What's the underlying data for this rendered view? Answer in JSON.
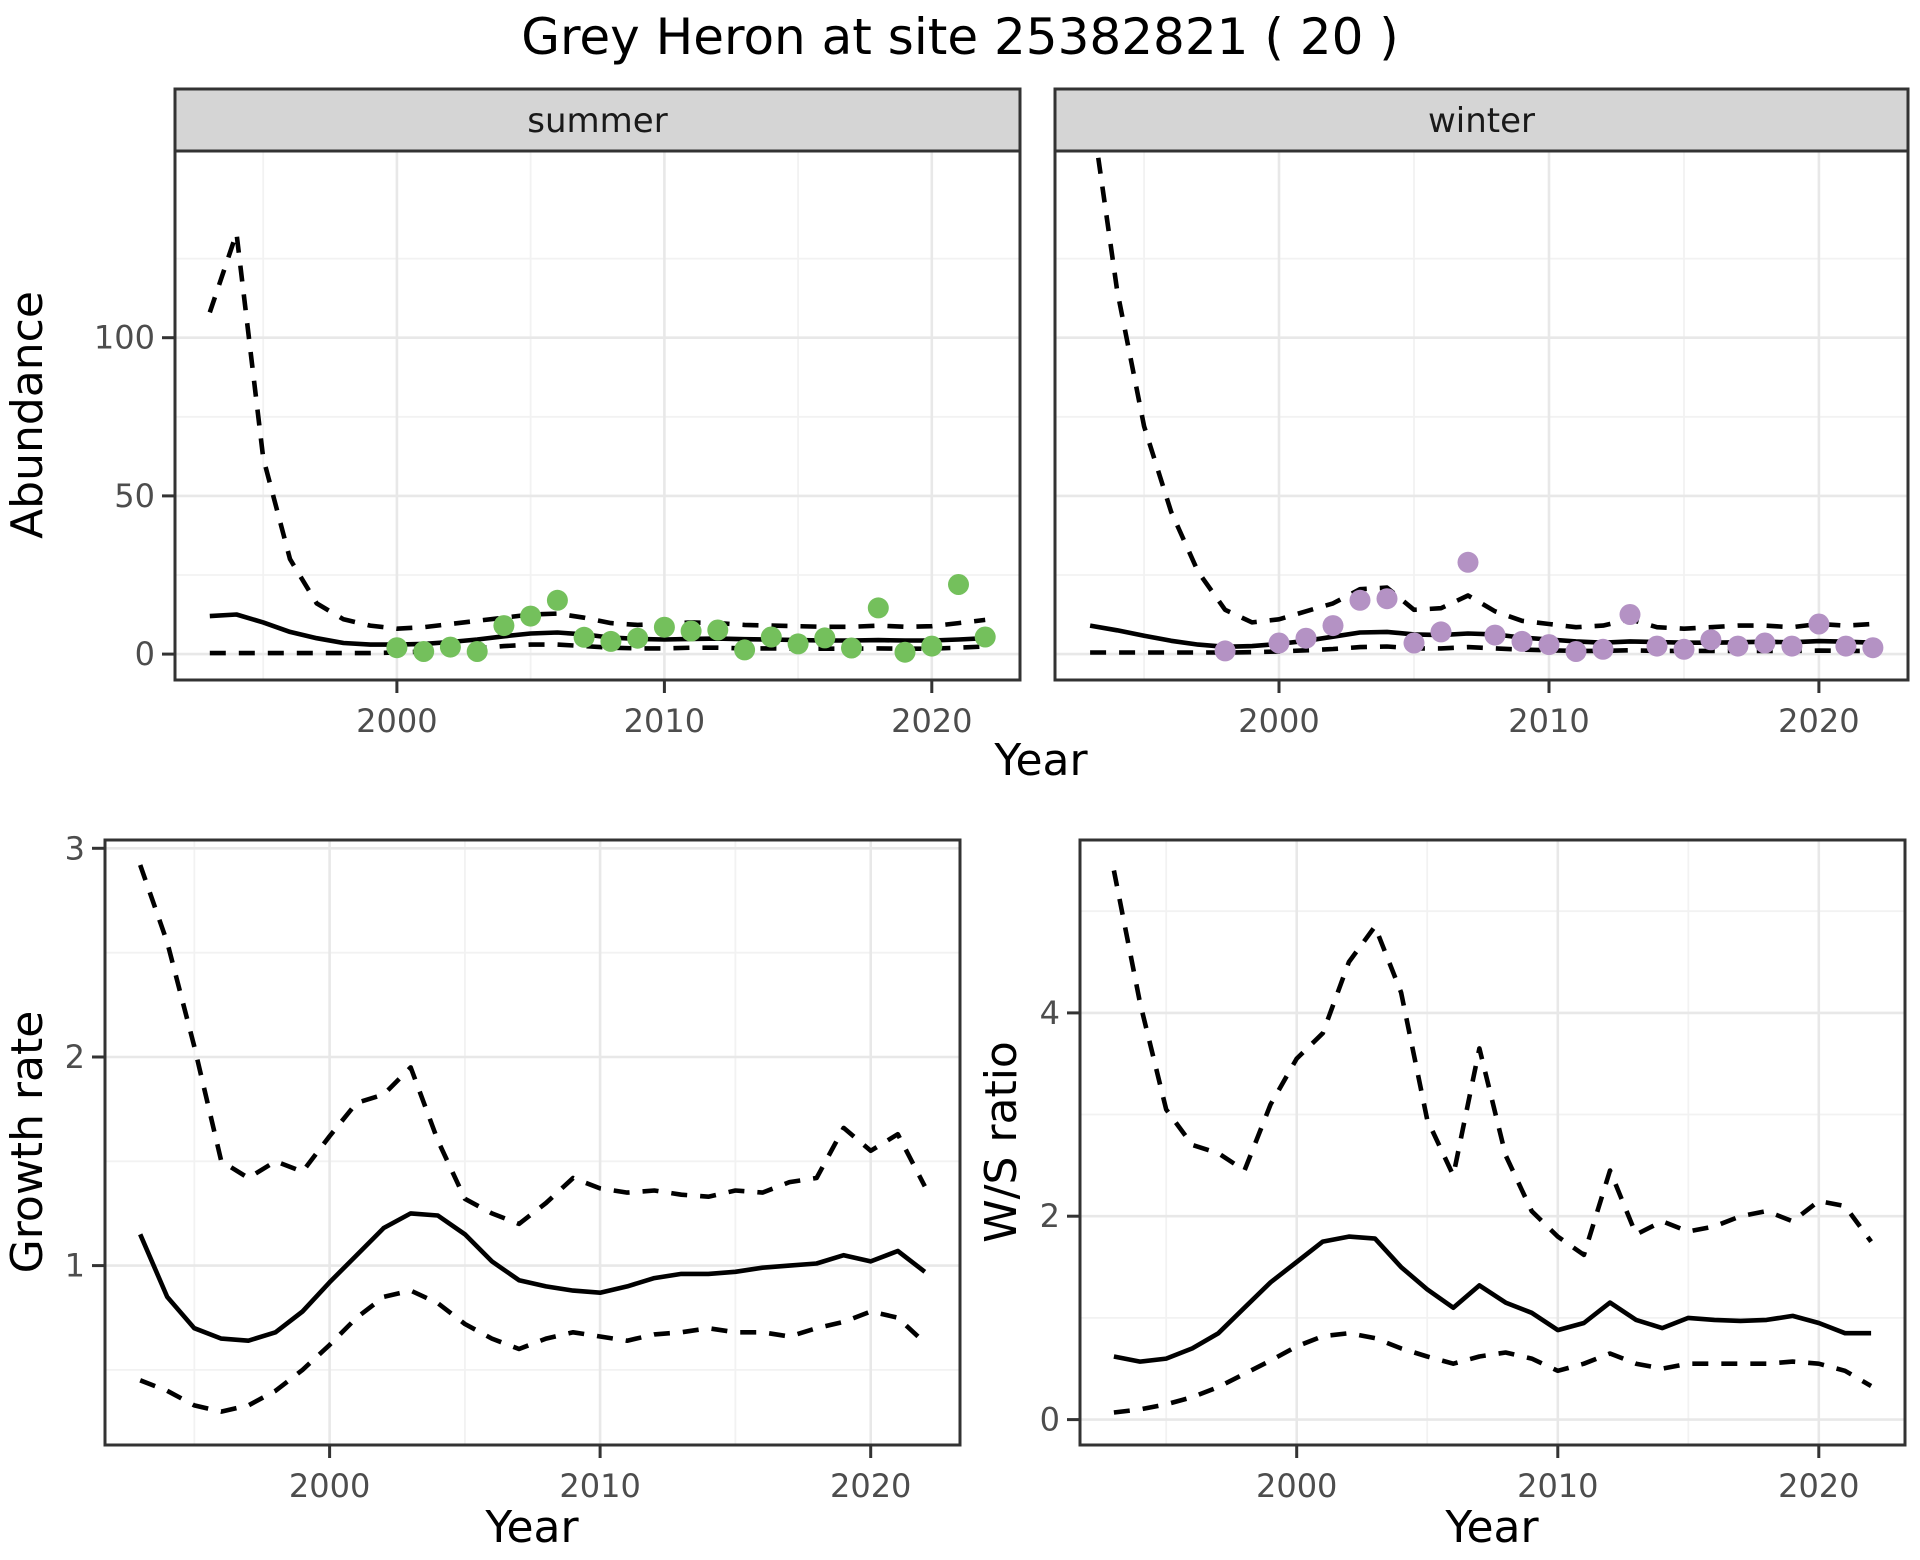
{
  "title": "Grey Heron at site 25382821 ( 20 )",
  "colors": {
    "background": "#FFFFFF",
    "panel_bg": "#FFFFFF",
    "strip_bg": "#D5D5D5",
    "strip_text": "#1A1A1A",
    "panel_border": "#333333",
    "grid_major": "#E8E8E8",
    "grid_minor": "#F2F2F2",
    "axis_text": "#4D4D4D",
    "tick_mark": "#333333",
    "line": "#000000",
    "summer_points": "#74C05C",
    "winter_points": "#B492C4"
  },
  "chart_data": [
    {
      "id": "abundance-summer",
      "type": "line",
      "facet_label": "summer",
      "ylabel": "Abundance",
      "xlabel": "Year",
      "xlim": [
        1991.7,
        2023.3
      ],
      "ylim": [
        -8.2,
        159
      ],
      "grid": true,
      "xticks": {
        "major": [
          2000,
          2010,
          2020
        ],
        "minor": [
          1995,
          2005,
          2015
        ],
        "labels": [
          "2000",
          "2010",
          "2020"
        ]
      },
      "yticks": {
        "major": [
          0,
          50,
          100
        ],
        "minor": [
          25,
          75,
          125
        ],
        "labels": [
          "0",
          "50",
          "100"
        ]
      },
      "x": [
        1993,
        1994,
        1995,
        1996,
        1997,
        1998,
        1999,
        2000,
        2001,
        2002,
        2003,
        2004,
        2005,
        2006,
        2007,
        2008,
        2009,
        2010,
        2011,
        2012,
        2013,
        2014,
        2015,
        2016,
        2017,
        2018,
        2019,
        2020,
        2021,
        2022
      ],
      "series": [
        {
          "name": "mean",
          "style": "solid",
          "values": [
            12,
            12.5,
            10,
            7,
            5,
            3.5,
            3,
            3,
            3.2,
            3.8,
            4.6,
            5.6,
            6.5,
            6.8,
            6.2,
            5.2,
            4.8,
            4.6,
            4.8,
            4.9,
            4.7,
            4.6,
            4.4,
            4.3,
            4.3,
            4.4,
            4.3,
            4.3,
            4.6,
            5
          ]
        },
        {
          "name": "upper_ci",
          "style": "dashed",
          "values": [
            108,
            133,
            62,
            30,
            16,
            11,
            9,
            8,
            8.5,
            9.5,
            10.5,
            11.5,
            12.5,
            12.8,
            11.5,
            9.8,
            9.2,
            9.5,
            10,
            9.8,
            9.2,
            9,
            8.8,
            8.6,
            8.6,
            9,
            8.6,
            8.8,
            9.8,
            10.8
          ]
        },
        {
          "name": "lower_ci",
          "style": "dashed",
          "values": [
            0.3,
            0.3,
            0.3,
            0.3,
            0.3,
            0.3,
            0.3,
            0.5,
            0.8,
            1.2,
            1.8,
            2.5,
            3,
            3,
            2.5,
            2,
            1.8,
            1.8,
            2,
            2,
            1.8,
            1.8,
            1.7,
            1.7,
            1.7,
            1.8,
            1.7,
            1.7,
            2,
            2.4
          ]
        }
      ],
      "points": {
        "color_key": "summer_points",
        "x": [
          2000,
          2001,
          2002,
          2003,
          2004,
          2005,
          2006,
          2007,
          2008,
          2009,
          2010,
          2011,
          2012,
          2013,
          2014,
          2015,
          2016,
          2017,
          2018,
          2019,
          2020,
          2021,
          2022
        ],
        "y": [
          2,
          0.8,
          2.2,
          0.8,
          9,
          12,
          17,
          5.3,
          4,
          5,
          8.5,
          7.3,
          7.6,
          1.3,
          5.4,
          3.2,
          5.1,
          1.9,
          14.6,
          0.6,
          2.5,
          22,
          5.4
        ]
      }
    },
    {
      "id": "abundance-winter",
      "type": "line",
      "facet_label": "winter",
      "ylabel": "Abundance",
      "xlabel": "Year",
      "xlim": [
        1991.7,
        2023.3
      ],
      "ylim": [
        -8.2,
        159
      ],
      "grid": true,
      "xticks": {
        "major": [
          2000,
          2010,
          2020
        ],
        "minor": [
          1995,
          2005,
          2015
        ],
        "labels": [
          "2000",
          "2010",
          "2020"
        ]
      },
      "yticks": {
        "major": [
          0,
          50,
          100
        ],
        "minor": [
          25,
          75,
          125
        ],
        "labels": [
          "0",
          "50",
          "100"
        ]
      },
      "x": [
        1993,
        1994,
        1995,
        1996,
        1997,
        1998,
        1999,
        2000,
        2001,
        2002,
        2003,
        2004,
        2005,
        2006,
        2007,
        2008,
        2009,
        2010,
        2011,
        2012,
        2013,
        2014,
        2015,
        2016,
        2017,
        2018,
        2019,
        2020,
        2021,
        2022
      ],
      "series": [
        {
          "name": "mean",
          "style": "solid",
          "values": [
            9,
            7.5,
            5.8,
            4.2,
            3,
            2.3,
            2.5,
            3.2,
            4.2,
            5.5,
            6.8,
            7,
            6.2,
            6,
            6.5,
            6.2,
            5.2,
            4.6,
            4,
            3.6,
            4,
            3.8,
            3.6,
            3.6,
            3.7,
            3.9,
            3.7,
            4.1,
            3.9,
            3.6
          ]
        },
        {
          "name": "upper_ci",
          "style": "dashed",
          "values": [
            175,
            115,
            72,
            45,
            26,
            14,
            10,
            11,
            13.5,
            16,
            20.5,
            21,
            14,
            14.5,
            18.5,
            13.5,
            10.5,
            9.5,
            8.5,
            9,
            11,
            8.5,
            8,
            8.5,
            9,
            9,
            8.5,
            9.5,
            9,
            9.5
          ]
        },
        {
          "name": "lower_ci",
          "style": "dashed",
          "values": [
            0.5,
            0.5,
            0.5,
            0.5,
            0.5,
            0.5,
            0.6,
            0.8,
            1.2,
            1.6,
            2.2,
            2.4,
            1.8,
            1.8,
            2.2,
            1.8,
            1.4,
            1.2,
            1,
            1,
            1.2,
            1,
            1,
            1,
            1,
            1,
            1,
            1.1,
            1,
            1
          ]
        }
      ],
      "points": {
        "color_key": "winter_points",
        "x": [
          1998,
          2000,
          2001,
          2002,
          2003,
          2004,
          2005,
          2006,
          2007,
          2008,
          2009,
          2010,
          2011,
          2012,
          2013,
          2014,
          2015,
          2016,
          2017,
          2018,
          2019,
          2020,
          2021,
          2022
        ],
        "y": [
          1,
          3.5,
          5,
          9,
          17,
          17.5,
          3.5,
          7,
          29,
          6,
          4,
          3,
          0.8,
          1.5,
          12.5,
          2.5,
          1.5,
          4.5,
          2.5,
          3.5,
          2.5,
          9.5,
          2.5,
          2
        ]
      }
    },
    {
      "id": "growth-rate",
      "type": "line",
      "facet_label": "",
      "ylabel": "Growth rate",
      "xlabel": "Year",
      "xlim": [
        1991.7,
        2023.3
      ],
      "ylim": [
        0.14,
        3.04
      ],
      "grid": true,
      "xticks": {
        "major": [
          2000,
          2010,
          2020
        ],
        "minor": [
          1995,
          2005,
          2015
        ],
        "labels": [
          "2000",
          "2010",
          "2020"
        ]
      },
      "yticks": {
        "major": [
          1,
          2,
          3
        ],
        "minor": [
          0.5,
          1.5,
          2.5
        ],
        "labels": [
          "1",
          "2",
          "3"
        ]
      },
      "x": [
        1993,
        1994,
        1995,
        1996,
        1997,
        1998,
        1999,
        2000,
        2001,
        2002,
        2003,
        2004,
        2005,
        2006,
        2007,
        2008,
        2009,
        2010,
        2011,
        2012,
        2013,
        2014,
        2015,
        2016,
        2017,
        2018,
        2019,
        2020,
        2021,
        2022
      ],
      "series": [
        {
          "name": "mean",
          "style": "solid",
          "values": [
            1.15,
            0.85,
            0.7,
            0.65,
            0.64,
            0.68,
            0.78,
            0.92,
            1.05,
            1.18,
            1.25,
            1.24,
            1.15,
            1.02,
            0.93,
            0.9,
            0.88,
            0.87,
            0.9,
            0.94,
            0.96,
            0.96,
            0.97,
            0.99,
            1,
            1.01,
            1.05,
            1.02,
            1.07,
            0.97
          ]
        },
        {
          "name": "upper_ci",
          "style": "dashed",
          "values": [
            2.92,
            2.55,
            2.05,
            1.5,
            1.42,
            1.5,
            1.45,
            1.62,
            1.78,
            1.82,
            1.95,
            1.6,
            1.32,
            1.25,
            1.2,
            1.3,
            1.42,
            1.37,
            1.35,
            1.36,
            1.34,
            1.33,
            1.36,
            1.35,
            1.4,
            1.42,
            1.66,
            1.55,
            1.63,
            1.38
          ]
        },
        {
          "name": "lower_ci",
          "style": "dashed",
          "values": [
            0.45,
            0.4,
            0.33,
            0.3,
            0.33,
            0.4,
            0.5,
            0.62,
            0.75,
            0.85,
            0.88,
            0.82,
            0.72,
            0.65,
            0.6,
            0.65,
            0.68,
            0.66,
            0.64,
            0.67,
            0.68,
            0.7,
            0.68,
            0.68,
            0.66,
            0.7,
            0.73,
            0.78,
            0.75,
            0.63
          ]
        }
      ]
    },
    {
      "id": "ws-ratio",
      "type": "line",
      "facet_label": "",
      "ylabel": "W/S ratio",
      "xlabel": "Year",
      "xlim": [
        1991.7,
        2023.3
      ],
      "ylim": [
        -0.25,
        5.7
      ],
      "grid": true,
      "xticks": {
        "major": [
          2000,
          2010,
          2020
        ],
        "minor": [
          1995,
          2005,
          2015
        ],
        "labels": [
          "2000",
          "2010",
          "2020"
        ]
      },
      "yticks": {
        "major": [
          0,
          2,
          4
        ],
        "minor": [
          1,
          3,
          5
        ],
        "labels": [
          "0",
          "2",
          "4"
        ]
      },
      "x": [
        1993,
        1994,
        1995,
        1996,
        1997,
        1998,
        1999,
        2000,
        2001,
        2002,
        2003,
        2004,
        2005,
        2006,
        2007,
        2008,
        2009,
        2010,
        2011,
        2012,
        2013,
        2014,
        2015,
        2016,
        2017,
        2018,
        2019,
        2020,
        2021,
        2022
      ],
      "series": [
        {
          "name": "mean",
          "style": "solid",
          "values": [
            0.62,
            0.57,
            0.6,
            0.7,
            0.85,
            1.1,
            1.35,
            1.55,
            1.75,
            1.8,
            1.78,
            1.5,
            1.28,
            1.1,
            1.32,
            1.15,
            1.05,
            0.88,
            0.95,
            1.15,
            0.98,
            0.9,
            1,
            0.98,
            0.97,
            0.98,
            1.02,
            0.95,
            0.85,
            0.85
          ]
        },
        {
          "name": "upper_ci",
          "style": "dashed",
          "values": [
            5.4,
            4.1,
            3.05,
            2.7,
            2.62,
            2.45,
            3.1,
            3.55,
            3.8,
            4.5,
            4.85,
            4.2,
            2.95,
            2.4,
            3.65,
            2.6,
            2.05,
            1.8,
            1.62,
            2.45,
            1.82,
            1.95,
            1.85,
            1.9,
            2,
            2.05,
            1.95,
            2.15,
            2.1,
            1.75
          ]
        },
        {
          "name": "lower_ci",
          "style": "dashed",
          "values": [
            0.07,
            0.1,
            0.15,
            0.22,
            0.32,
            0.45,
            0.58,
            0.72,
            0.82,
            0.85,
            0.8,
            0.7,
            0.62,
            0.55,
            0.62,
            0.66,
            0.6,
            0.48,
            0.55,
            0.65,
            0.55,
            0.5,
            0.55,
            0.55,
            0.55,
            0.55,
            0.57,
            0.55,
            0.48,
            0.33
          ]
        }
      ]
    }
  ]
}
